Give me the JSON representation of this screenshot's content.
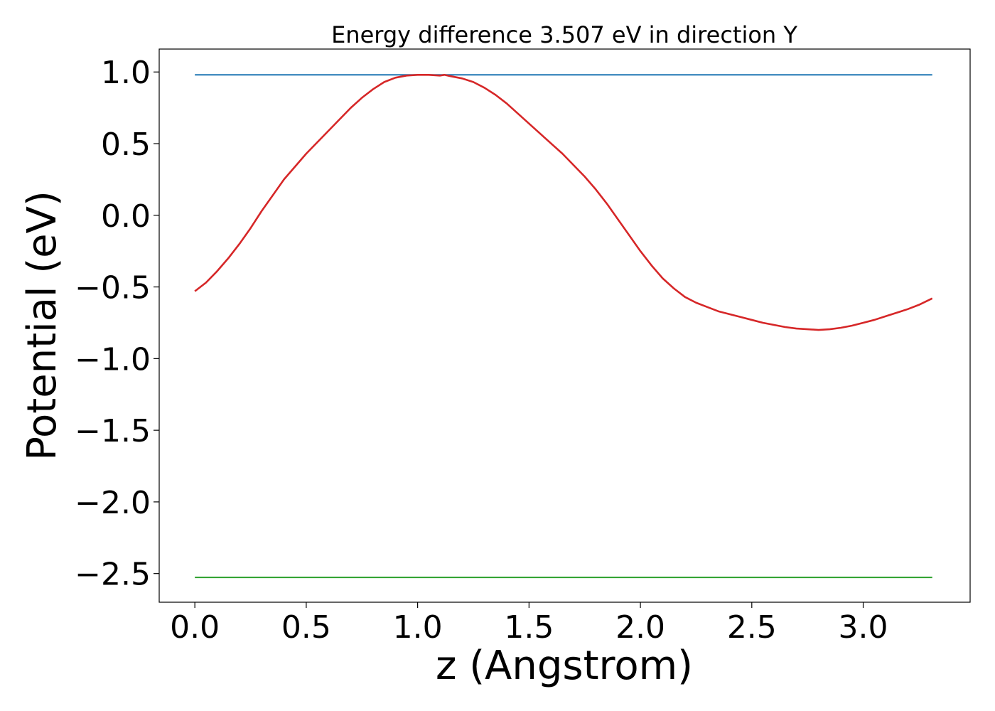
{
  "chart_data": {
    "type": "line",
    "title": "Energy difference 3.507 eV in direction Y",
    "xlabel": "z (Angstrom)",
    "ylabel": "Potential (eV)",
    "xlim": [
      -0.16,
      3.48
    ],
    "ylim": [
      -2.7,
      1.16
    ],
    "xticks": [
      0.0,
      0.5,
      1.0,
      1.5,
      2.0,
      2.5,
      3.0
    ],
    "xtick_labels": [
      "0.0",
      "0.5",
      "1.0",
      "1.5",
      "2.0",
      "2.5",
      "3.0"
    ],
    "yticks": [
      1.0,
      0.5,
      0.0,
      -0.5,
      -1.0,
      -1.5,
      -2.0,
      -2.5
    ],
    "ytick_labels": [
      "1.0",
      "0.5",
      "0.0",
      "−0.5",
      "−1.0",
      "−1.5",
      "−2.0",
      "−2.5"
    ],
    "grid": false,
    "series": [
      {
        "color": "#1f77b4",
        "kind": "hline",
        "x": [
          0.0,
          3.31
        ],
        "y": [
          0.98,
          0.98
        ]
      },
      {
        "color": "#2ca02c",
        "kind": "hline",
        "x": [
          0.0,
          3.31
        ],
        "y": [
          -2.527,
          -2.527
        ]
      },
      {
        "color": "#d62728",
        "kind": "curve",
        "x": [
          0.0,
          0.05,
          0.1,
          0.15,
          0.2,
          0.25,
          0.3,
          0.35,
          0.4,
          0.45,
          0.5,
          0.55,
          0.6,
          0.65,
          0.7,
          0.75,
          0.8,
          0.85,
          0.9,
          0.95,
          1.0,
          1.05,
          1.1,
          1.12,
          1.15,
          1.2,
          1.25,
          1.3,
          1.35,
          1.4,
          1.45,
          1.5,
          1.55,
          1.6,
          1.65,
          1.7,
          1.75,
          1.8,
          1.85,
          1.9,
          1.95,
          2.0,
          2.05,
          2.1,
          2.15,
          2.2,
          2.25,
          2.3,
          2.35,
          2.4,
          2.45,
          2.5,
          2.55,
          2.6,
          2.65,
          2.7,
          2.75,
          2.8,
          2.85,
          2.9,
          2.95,
          3.0,
          3.05,
          3.1,
          3.15,
          3.2,
          3.25,
          3.31
        ],
        "y": [
          -0.53,
          -0.47,
          -0.39,
          -0.3,
          -0.2,
          -0.09,
          0.03,
          0.14,
          0.25,
          0.34,
          0.43,
          0.51,
          0.59,
          0.67,
          0.75,
          0.82,
          0.88,
          0.93,
          0.96,
          0.975,
          0.98,
          0.98,
          0.975,
          0.98,
          0.97,
          0.955,
          0.93,
          0.89,
          0.84,
          0.78,
          0.71,
          0.64,
          0.57,
          0.5,
          0.43,
          0.35,
          0.27,
          0.18,
          0.08,
          -0.03,
          -0.14,
          -0.25,
          -0.35,
          -0.44,
          -0.51,
          -0.57,
          -0.61,
          -0.64,
          -0.67,
          -0.69,
          -0.71,
          -0.73,
          -0.75,
          -0.765,
          -0.78,
          -0.79,
          -0.795,
          -0.8,
          -0.795,
          -0.785,
          -0.77,
          -0.75,
          -0.73,
          -0.705,
          -0.68,
          -0.655,
          -0.625,
          -0.58
        ]
      }
    ]
  }
}
